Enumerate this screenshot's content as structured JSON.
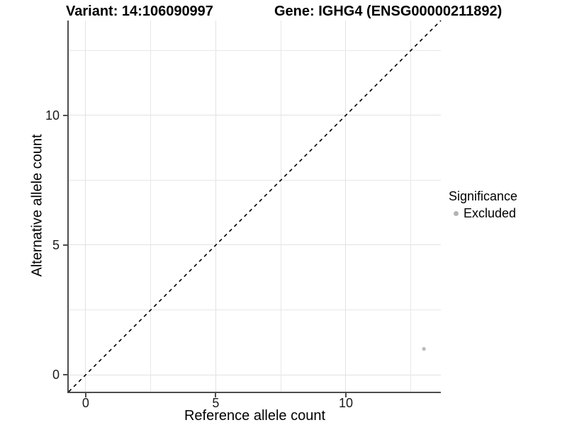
{
  "header": {
    "variant_title": "Variant: 14:106090997",
    "gene_title": "Gene: IGHG4 (ENSG00000211892)"
  },
  "chart_data": {
    "type": "scatter",
    "title": "Variant: 14:106090997   Gene: IGHG4 (ENSG00000211892)",
    "xlabel": "Reference allele count",
    "ylabel": "Alternative allele count",
    "xlim": [
      -0.65,
      13.65
    ],
    "ylim": [
      -0.65,
      13.65
    ],
    "x_major_ticks": [
      0,
      5,
      10
    ],
    "y_major_ticks": [
      0,
      5,
      10
    ],
    "grid_step": 2.5,
    "grid": "on",
    "points": [
      {
        "x": 13,
        "y": 1,
        "series": "Excluded"
      }
    ],
    "reference_line": {
      "type": "identity y=x",
      "style": "dashed",
      "from": [
        -0.65,
        -0.65
      ],
      "to": [
        13.65,
        13.65
      ],
      "color": "#000000"
    },
    "legend": {
      "title": "Significance",
      "position": "right",
      "items": [
        {
          "label": "Excluded",
          "color": "#b4b4b4"
        }
      ]
    },
    "colors": {
      "point_excluded": "#bdbdbd",
      "axis_line": "#4d4d4d",
      "grid_major": "#e2e2e2",
      "grid_minor": "#e8e8e8",
      "dashed_line": "#000000",
      "background": "#ffffff"
    },
    "point_radius_px": 2.7,
    "legend_key_radius_px": 3.5
  }
}
